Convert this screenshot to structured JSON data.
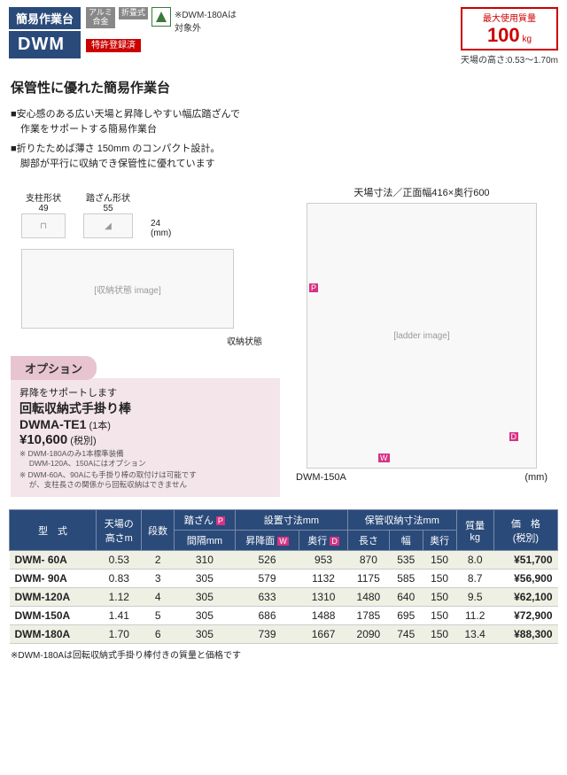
{
  "header": {
    "category": "簡易作業台",
    "model": "DWM",
    "badge1": "アルミ\n合金",
    "badge2": "折畳式",
    "patent": "特許登録済",
    "exclusion_note": "※DWM-180Aは\n対象外",
    "maxload_label": "最大使用質量",
    "maxload_value": "100",
    "maxload_unit": "kg",
    "height_note": "天場の高さ:0.53～1.70m"
  },
  "subtitle": "保管性に優れた簡易作業台",
  "features": {
    "f1": "■安心感のある広い天場と昇降しやすい幅広踏ざんで\n　作業をサポートする簡易作業台",
    "f2": "■折りたためば薄さ 150mm のコンパクト設計。\n　脚部が平行に収納でき保管性に優れています"
  },
  "diagrams": {
    "leg_label": "支柱形状",
    "leg_w": "49",
    "step_label": "踏ざん形状",
    "step_w": "55",
    "h": "24",
    "unit": "(mm)",
    "folded_label": "収納状態",
    "top_dim": "天場寸法／正面幅416×奥行600",
    "product_name": "DWM-150A",
    "unit2": "(mm)"
  },
  "option": {
    "header": "オプション",
    "lead": "昇降をサポートします",
    "name": "回転収納式手掛り棒",
    "model": "DWMA-TE1",
    "qty": "(1本)",
    "price": "¥10,600",
    "tax": "(税別)",
    "note1": "※ DWM-180Aのみ1本標準装備\n　 DWM-120A、150Aにはオプション",
    "note2": "※ DWM-60A、90Aにも手掛り棒の取付けは可能です\n　 が、支柱長さの関係から回転収納はできません"
  },
  "table": {
    "headers": {
      "model": "型　式",
      "height": "天場の\n高さm",
      "steps": "段数",
      "step_gap": "踏ざん",
      "step_gap2": "間隔mm",
      "install": "設置寸法mm",
      "install_w": "昇降面",
      "install_d": "奥行",
      "storage": "保管収納寸法mm",
      "storage_l": "長さ",
      "storage_w": "幅",
      "storage_d": "奥行",
      "weight": "質量\nkg",
      "price": "価　格\n(税別)"
    },
    "rows": [
      {
        "model": "DWM- 60A",
        "h": "0.53",
        "steps": "2",
        "gap": "310",
        "iw": "526",
        "id": "953",
        "sl": "870",
        "sw": "535",
        "sd": "150",
        "wt": "8.0",
        "price": "¥51,700"
      },
      {
        "model": "DWM- 90A",
        "h": "0.83",
        "steps": "3",
        "gap": "305",
        "iw": "579",
        "id": "1132",
        "sl": "1175",
        "sw": "585",
        "sd": "150",
        "wt": "8.7",
        "price": "¥56,900"
      },
      {
        "model": "DWM-120A",
        "h": "1.12",
        "steps": "4",
        "gap": "305",
        "iw": "633",
        "id": "1310",
        "sl": "1480",
        "sw": "640",
        "sd": "150",
        "wt": "9.5",
        "price": "¥62,100"
      },
      {
        "model": "DWM-150A",
        "h": "1.41",
        "steps": "5",
        "gap": "305",
        "iw": "686",
        "id": "1488",
        "sl": "1785",
        "sw": "695",
        "sd": "150",
        "wt": "11.2",
        "price": "¥72,900"
      },
      {
        "model": "DWM-180A",
        "h": "1.70",
        "steps": "6",
        "gap": "305",
        "iw": "739",
        "id": "1667",
        "sl": "2090",
        "sw": "745",
        "sd": "150",
        "wt": "13.4",
        "price": "¥88,300"
      }
    ]
  },
  "footnote": "※DWM-180Aは回転収納式手掛り棒付きの質量と価格です"
}
